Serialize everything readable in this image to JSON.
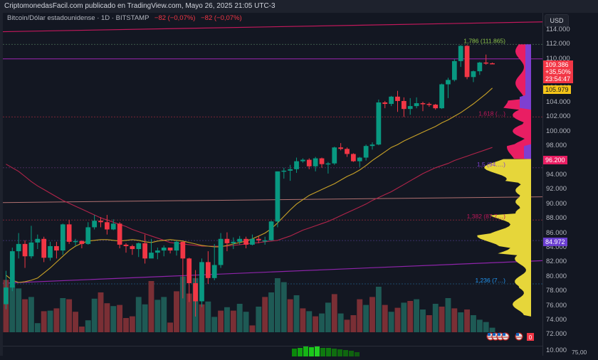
{
  "header": {
    "publisher_line": "CriptomonedasFacil.com publicado en TradingView.com, Mayo 26, 2025 21:05 UTC-3"
  },
  "legend": {
    "symbol": "Bitcoin/Dólar estadounidense · 1D · BITSTAMP",
    "change_1": "−82 (−0,07%)",
    "change_2": "−82 (−0,07%)"
  },
  "price_axis": {
    "currency": "USD",
    "ticks": [
      "114.000",
      "112.000",
      "110.000",
      "108.000",
      "106.000",
      "104.000",
      "102.000",
      "100.000",
      "98.000",
      "96.000",
      "94.000",
      "92.000",
      "90.000",
      "88.000",
      "86.000",
      "84.000",
      "82.000",
      "80.000",
      "78.000",
      "76.000",
      "74.000",
      "72.000"
    ],
    "current_price": "109.386",
    "current_change": "+35,50%",
    "countdown": "23:54:47",
    "ma_label": "105.979",
    "level_label_red": "96.200",
    "level_label_purple": "84.972",
    "volume_pane_tick": "10.000",
    "volume_badge": "0",
    "indicator_value": "75,00"
  },
  "annotations": {
    "fib_top": "1,786 (111.865)",
    "fib_1": "1,618 (…)",
    "fib_2": "1,5 (94.…)",
    "fib_3": "1,382 (87.7…)",
    "fib_4": "1,236 (7…)"
  },
  "colors": {
    "background": "#131722",
    "up": "#089981",
    "down": "#f23645",
    "vol_up": "#1e5a55",
    "vol_down": "#7a2f35",
    "ma_short": "#c9a227",
    "ma_long": "#b2244a",
    "vp_upper": "#e91e63",
    "vp_upper_bar": "#7e3fd1",
    "vp_lower": "#e6d63a",
    "current_price_bg": "#f23645",
    "ma_badge_bg": "#f5c518",
    "purple_badge_bg": "#6b3fd1"
  },
  "chart_data": {
    "type": "candlestick",
    "title": "Bitcoin/Dólar estadounidense · 1D · BITSTAMP",
    "xlabel": "",
    "ylabel": "USD",
    "ylim": [
      71500,
      115500
    ],
    "grid": false,
    "candles": [
      [
        76200,
        78500,
        75500,
        80800
      ],
      [
        78500,
        83500,
        78000,
        84000
      ],
      [
        83500,
        84500,
        82500,
        86000
      ],
      [
        84500,
        82800,
        81200,
        85000
      ],
      [
        82800,
        84700,
        82500,
        87000
      ],
      [
        84700,
        85200,
        83800,
        85800
      ],
      [
        85200,
        82600,
        82000,
        85500
      ],
      [
        82600,
        84200,
        82200,
        84800
      ],
      [
        84200,
        83600,
        82500,
        84800
      ],
      [
        83600,
        87200,
        83000,
        87300
      ],
      [
        87200,
        84800,
        84500,
        87800
      ],
      [
        84800,
        84900,
        84200,
        85200
      ],
      [
        84900,
        84500,
        83900,
        85000
      ],
      [
        84500,
        86800,
        84400,
        87500
      ],
      [
        86800,
        87700,
        86500,
        88500
      ],
      [
        87700,
        87500,
        86800,
        88200
      ],
      [
        87500,
        86500,
        85800,
        88500
      ],
      [
        86500,
        87300,
        86400,
        87900
      ],
      [
        87300,
        84400,
        83900,
        87500
      ],
      [
        84400,
        84200,
        83300,
        84600
      ],
      [
        84200,
        83800,
        83000,
        84400
      ],
      [
        83800,
        84600,
        82700,
        84700
      ],
      [
        84600,
        82500,
        81800,
        85800
      ],
      [
        82500,
        83300,
        82600,
        85200
      ],
      [
        83300,
        83600,
        82400,
        84000
      ],
      [
        83600,
        84000,
        82800,
        84300
      ],
      [
        84000,
        83600,
        83200,
        84000
      ],
      [
        83600,
        84800,
        82900,
        85000
      ],
      [
        84800,
        82500,
        77000,
        84800
      ],
      [
        82500,
        79100,
        76500,
        82600
      ],
      [
        79100,
        76600,
        74500,
        80900
      ],
      [
        76600,
        82000,
        75800,
        82500
      ],
      [
        82000,
        79800,
        79000,
        83500
      ],
      [
        79800,
        81600,
        79500,
        84500
      ],
      [
        81600,
        85200,
        81200,
        86000
      ],
      [
        85200,
        84600,
        83500,
        86100
      ],
      [
        84600,
        84800,
        83800,
        85400
      ],
      [
        84800,
        85200,
        84400,
        85600
      ],
      [
        85200,
        84400,
        83900,
        85500
      ],
      [
        84400,
        85200,
        84300,
        85800
      ],
      [
        85200,
        85000,
        84600,
        85600
      ],
      [
        85000,
        85000,
        84400,
        85500
      ],
      [
        85000,
        87600,
        85000,
        87700
      ],
      [
        87600,
        94500,
        86800,
        94500
      ],
      [
        94500,
        94600,
        93500,
        95000
      ],
      [
        94600,
        94800,
        93200,
        95400
      ],
      [
        94800,
        95900,
        94300,
        96400
      ],
      [
        95900,
        96100,
        95700,
        96300
      ],
      [
        96100,
        95200,
        94800,
        96300
      ],
      [
        95200,
        96300,
        94500,
        96500
      ],
      [
        96300,
        95500,
        95000,
        96400
      ],
      [
        95500,
        95600,
        94200,
        95800
      ],
      [
        95600,
        97800,
        95400,
        97900
      ],
      [
        97800,
        97600,
        97400,
        98400
      ],
      [
        97600,
        96900,
        96500,
        97800
      ],
      [
        96900,
        95900,
        95800,
        97000
      ],
      [
        95900,
        96400,
        95100,
        96500
      ],
      [
        96400,
        98000,
        96000,
        98200
      ],
      [
        98000,
        98200,
        97500,
        98500
      ],
      [
        98200,
        104000,
        98100,
        104400
      ],
      [
        104000,
        103800,
        103200,
        104200
      ],
      [
        103800,
        104800,
        103500,
        104900
      ],
      [
        104800,
        104200,
        102700,
        105600
      ],
      [
        104200,
        103100,
        102000,
        104700
      ],
      [
        103100,
        103500,
        102300,
        104600
      ],
      [
        103500,
        103900,
        103200,
        104700
      ],
      [
        103900,
        103800,
        102800,
        104100
      ],
      [
        103800,
        103700,
        103400,
        104000
      ],
      [
        103700,
        103200,
        103000,
        103800
      ],
      [
        103200,
        106500,
        103100,
        106600
      ],
      [
        106500,
        107100,
        104600,
        107400
      ],
      [
        107100,
        109700,
        106900,
        110000
      ],
      [
        109700,
        111800,
        108900,
        111900
      ],
      [
        111800,
        107500,
        107200,
        111900
      ],
      [
        107500,
        108300,
        106800,
        108400
      ],
      [
        108300,
        109500,
        107800,
        109600
      ],
      [
        109500,
        109400,
        109200,
        110600
      ],
      [
        109400,
        109386,
        109300,
        109500
      ]
    ],
    "volume": [
      {
        "dir": "down",
        "h": 0.92
      },
      {
        "dir": "up",
        "h": 0.83
      },
      {
        "dir": "up",
        "h": 0.77
      },
      {
        "dir": "down",
        "h": 0.58
      },
      {
        "dir": "up",
        "h": 0.62
      },
      {
        "dir": "up",
        "h": 0.16
      },
      {
        "dir": "down",
        "h": 0.37
      },
      {
        "dir": "up",
        "h": 0.38
      },
      {
        "dir": "down",
        "h": 0.42
      },
      {
        "dir": "up",
        "h": 0.6
      },
      {
        "dir": "down",
        "h": 0.58
      },
      {
        "dir": "down",
        "h": 0.36
      },
      {
        "dir": "down",
        "h": 0.1
      },
      {
        "dir": "up",
        "h": 0.21
      },
      {
        "dir": "up",
        "h": 0.59
      },
      {
        "dir": "down",
        "h": 0.7
      },
      {
        "dir": "down",
        "h": 0.51
      },
      {
        "dir": "up",
        "h": 0.46
      },
      {
        "dir": "down",
        "h": 0.48
      },
      {
        "dir": "down",
        "h": 0.25
      },
      {
        "dir": "down",
        "h": 0.28
      },
      {
        "dir": "up",
        "h": 0.62
      },
      {
        "dir": "up",
        "h": 0.49
      },
      {
        "dir": "down",
        "h": 0.9
      },
      {
        "dir": "up",
        "h": 0.57
      },
      {
        "dir": "up",
        "h": 0.62
      },
      {
        "dir": "down",
        "h": 0.17
      },
      {
        "dir": "down",
        "h": 0.72
      },
      {
        "dir": "up",
        "h": 0.98
      },
      {
        "dir": "down",
        "h": 0.68
      },
      {
        "dir": "up",
        "h": 0.95
      },
      {
        "dir": "down",
        "h": 0.49
      },
      {
        "dir": "up",
        "h": 0.54
      },
      {
        "dir": "up",
        "h": 0.27
      },
      {
        "dir": "down",
        "h": 0.38
      },
      {
        "dir": "up",
        "h": 0.44
      },
      {
        "dir": "down",
        "h": 0.38
      },
      {
        "dir": "up",
        "h": 0.5
      },
      {
        "dir": "up",
        "h": 0.36
      },
      {
        "dir": "down",
        "h": 0.12
      },
      {
        "dir": "up",
        "h": 0.45
      },
      {
        "dir": "down",
        "h": 0.62
      },
      {
        "dir": "up",
        "h": 0.7
      },
      {
        "dir": "up",
        "h": 0.95
      },
      {
        "dir": "up",
        "h": 0.88
      },
      {
        "dir": "down",
        "h": 0.58
      },
      {
        "dir": "up",
        "h": 0.65
      },
      {
        "dir": "down",
        "h": 0.42
      },
      {
        "dir": "up",
        "h": 0.37
      },
      {
        "dir": "down",
        "h": 0.28
      },
      {
        "dir": "up",
        "h": 0.33
      },
      {
        "dir": "up",
        "h": 0.52
      },
      {
        "dir": "down",
        "h": 0.67
      },
      {
        "dir": "up",
        "h": 0.33
      },
      {
        "dir": "down",
        "h": 0.22
      },
      {
        "dir": "down",
        "h": 0.3
      },
      {
        "dir": "down",
        "h": 0.58
      },
      {
        "dir": "up",
        "h": 0.48
      },
      {
        "dir": "down",
        "h": 0.62
      },
      {
        "dir": "up",
        "h": 0.8
      },
      {
        "dir": "down",
        "h": 0.48
      },
      {
        "dir": "up",
        "h": 0.36
      },
      {
        "dir": "down",
        "h": 0.43
      },
      {
        "dir": "up",
        "h": 0.52
      },
      {
        "dir": "down",
        "h": 0.55
      },
      {
        "dir": "up",
        "h": 0.58
      },
      {
        "dir": "up",
        "h": 0.4
      },
      {
        "dir": "down",
        "h": 0.3
      },
      {
        "dir": "up",
        "h": 0.5
      },
      {
        "dir": "down",
        "h": 0.45
      },
      {
        "dir": "up",
        "h": 0.6
      },
      {
        "dir": "down",
        "h": 0.42
      },
      {
        "dir": "up",
        "h": 0.35
      },
      {
        "dir": "down",
        "h": 0.4
      },
      {
        "dir": "up",
        "h": 0.3
      },
      {
        "dir": "up",
        "h": 0.22
      },
      {
        "dir": "up",
        "h": 0.18
      },
      {
        "dir": "up",
        "h": 0.08
      }
    ],
    "ma_short": [
      80200,
      79500,
      79200,
      79300,
      79500,
      79800,
      80500,
      81200,
      82000,
      82800,
      83600,
      84200,
      84600,
      84900,
      85000,
      85100,
      85100,
      85000,
      84900,
      85000,
      85100,
      85000,
      84800,
      84700,
      84900,
      85000,
      85100,
      85000,
      84900,
      84700,
      84500,
      84300,
      84200,
      84100,
      84100,
      84300,
      84500,
      84700,
      84900,
      85200,
      85600,
      86000,
      86600,
      87400,
      88300,
      89200,
      90000,
      90600,
      91200,
      91600,
      92000,
      92400,
      92800,
      93300,
      93800,
      94200,
      94700,
      95300,
      96000,
      96600,
      97200,
      97800,
      98200,
      98700,
      99100,
      99500,
      99900,
      100300,
      100700,
      101200,
      101600,
      102100,
      102600,
      103200,
      103800,
      104500,
      105200,
      105979
    ],
    "ma_long": [
      95500,
      95000,
      94500,
      93800,
      93100,
      92500,
      92000,
      91500,
      91000,
      90500,
      90100,
      89700,
      89300,
      88900,
      88500,
      88100,
      87800,
      87500,
      87200,
      86900,
      86500,
      86200,
      85900,
      85600,
      85300,
      85000,
      84700,
      84600,
      84500,
      84400,
      84300,
      84200,
      84200,
      84200,
      84200,
      84200,
      84300,
      84400,
      84500,
      84600,
      84700,
      84800,
      84900,
      85000,
      85300,
      85600,
      86000,
      86400,
      86700,
      87000,
      87300,
      87600,
      88000,
      88400,
      88800,
      89200,
      89600,
      90000,
      90500,
      90900,
      91300,
      91700,
      92200,
      92700,
      93200,
      93700,
      94200,
      94600,
      95000,
      95300,
      95600,
      96000,
      96300,
      96600,
      96900,
      97200,
      97500,
      97800
    ]
  }
}
